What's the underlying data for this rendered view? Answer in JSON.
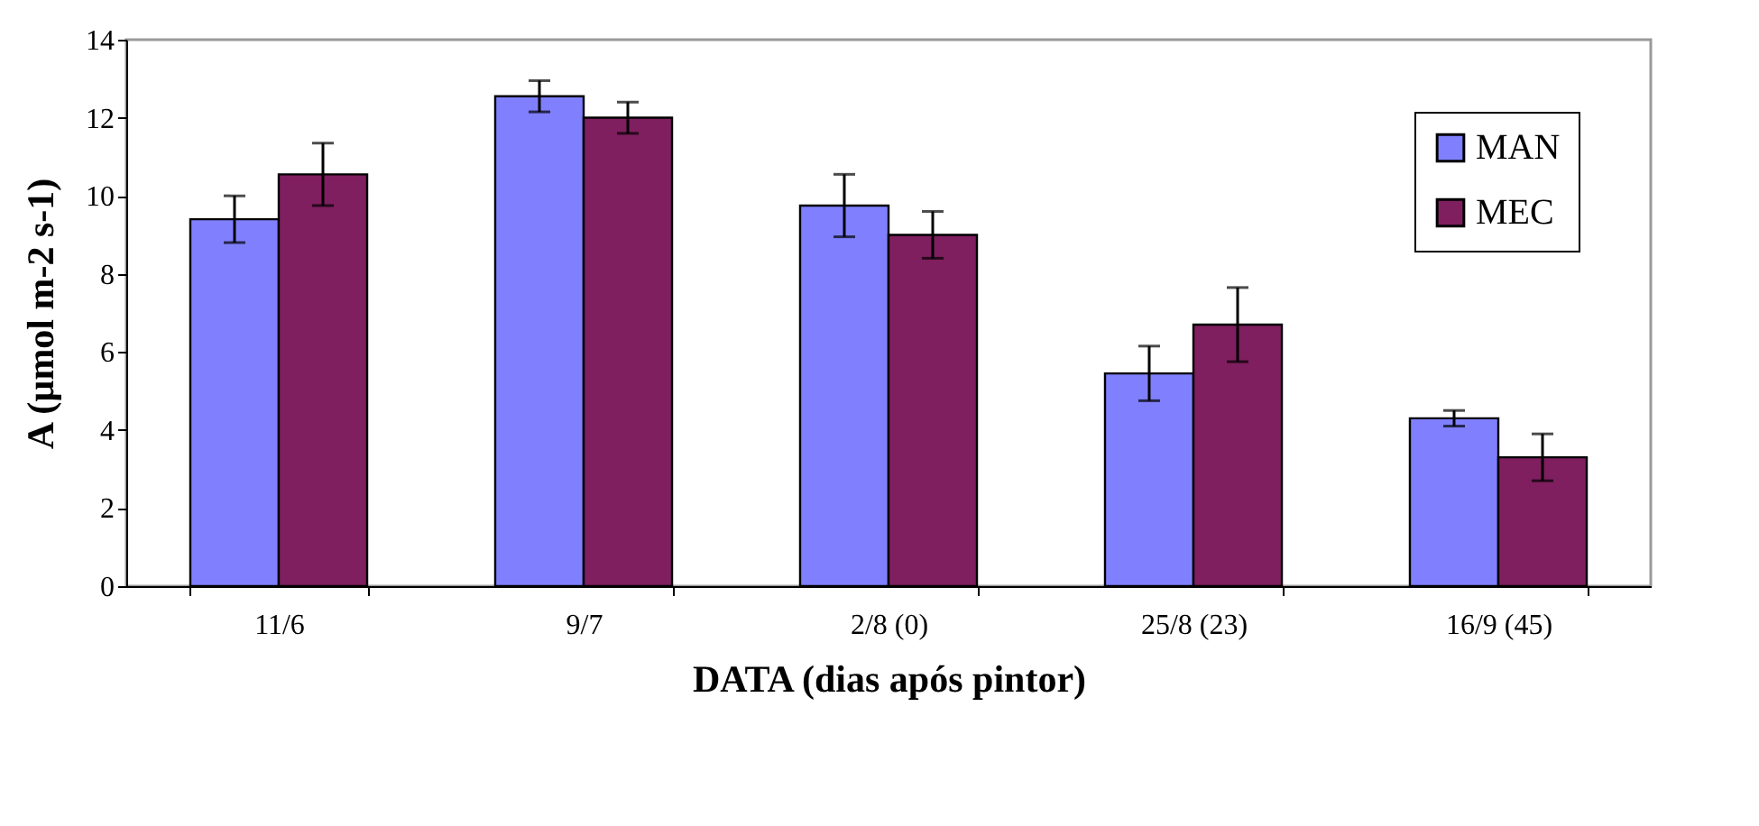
{
  "chart_data": {
    "type": "bar",
    "xlabel": "DATA (dias após pintor)",
    "ylabel": "A (µmol m-2 s-1)",
    "categories": [
      "11/6",
      "9/7",
      "2/8 (0)",
      "25/8 (23)",
      "16/9 (45)"
    ],
    "series": [
      {
        "name": "MAN",
        "color": "#8080ff",
        "values": [
          9.4,
          12.55,
          9.75,
          5.45,
          4.3
        ],
        "errors": [
          0.6,
          0.4,
          0.8,
          0.7,
          0.2
        ]
      },
      {
        "name": "MEC",
        "color": "#7f1f5f",
        "values": [
          10.55,
          12.0,
          9.0,
          6.7,
          3.3
        ],
        "errors": [
          0.8,
          0.4,
          0.6,
          0.95,
          0.6
        ]
      }
    ],
    "ylim": [
      0,
      14
    ],
    "yticks": [
      0,
      2,
      4,
      6,
      8,
      10,
      12,
      14
    ],
    "grid": false,
    "legend": "top right"
  }
}
